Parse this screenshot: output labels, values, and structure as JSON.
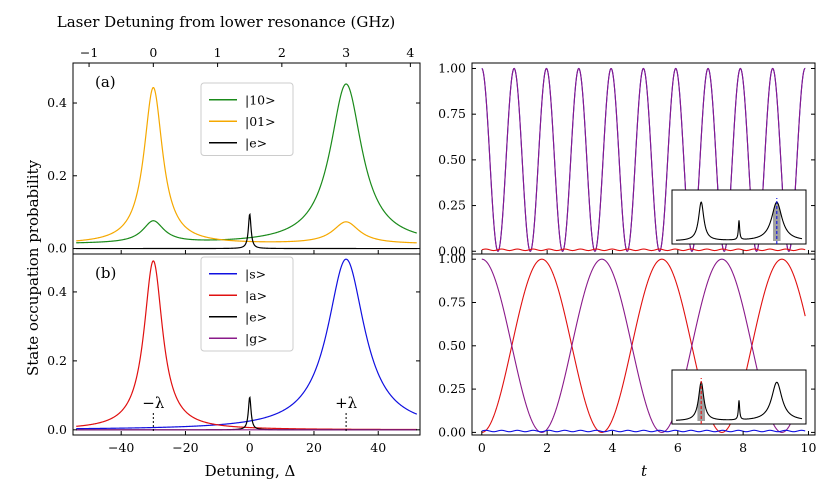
{
  "figure": {
    "top_axis_label": "Laser Detuning from lower resonance (GHz)",
    "y_axis_label": "State occupation probability",
    "x_axis_label_left": "Detuning, Δ",
    "x_axis_label_right": "t"
  },
  "colors": {
    "green": "#1a8a1a",
    "orange": "#f5a800",
    "black": "#000000",
    "blue": "#1010e0",
    "red": "#e01010",
    "purple": "#8a1a8a",
    "band": "#a0a0a0"
  },
  "chart_data": [
    {
      "id": "panel-a",
      "type": "line",
      "panel_label": "(a)",
      "xlim": [
        -55,
        53
      ],
      "ylim": [
        -0.015,
        0.51
      ],
      "top_axis": {
        "ticks": [
          -1,
          0,
          1,
          2,
          3,
          4
        ],
        "tick_labels": [
          "−1",
          "0",
          "1",
          "2",
          "3",
          "4"
        ],
        "detuning_at_0GHz": -30,
        "detuning_per_GHz": 20
      },
      "yticks": [
        0.0,
        0.2,
        0.4
      ],
      "ytick_labels": [
        "0.0",
        "0.2",
        "0.4"
      ],
      "legend": {
        "position": "upper-center",
        "entries": [
          "|10>",
          "|01>",
          "|e>"
        ]
      },
      "series": [
        {
          "name": "|10>",
          "color_key": "green",
          "peaks": [
            {
              "x0": 30,
              "amp": 0.44,
              "width": 6
            },
            {
              "x0": -30,
              "amp": 0.06,
              "width": 4
            }
          ],
          "baseline": 0.012
        },
        {
          "name": "|01>",
          "color_key": "orange",
          "peaks": [
            {
              "x0": -30,
              "amp": 0.43,
              "width": 3.5
            },
            {
              "x0": 30,
              "amp": 0.06,
              "width": 5
            }
          ],
          "baseline": 0.012
        },
        {
          "name": "|e>",
          "color_key": "black",
          "peaks": [
            {
              "x0": 0,
              "amp": 0.095,
              "width": 0.5
            }
          ],
          "baseline": 0.0
        }
      ]
    },
    {
      "id": "panel-b",
      "type": "line",
      "panel_label": "(b)",
      "xlim": [
        -55,
        53
      ],
      "ylim": [
        -0.015,
        0.51
      ],
      "xticks": [
        -40,
        -20,
        0,
        20,
        40
      ],
      "xtick_labels": [
        "−40",
        "−20",
        "0",
        "20",
        "40"
      ],
      "yticks": [
        0.0,
        0.2,
        0.4
      ],
      "ytick_labels": [
        "0.0",
        "0.2",
        "0.4"
      ],
      "legend": {
        "position": "upper-center",
        "entries": [
          "|s>",
          "|a>",
          "|e>",
          "|g>"
        ]
      },
      "annotations": [
        {
          "text": "−λ",
          "x": -30
        },
        {
          "text": "+λ",
          "x": 30
        }
      ],
      "series": [
        {
          "name": "|s>",
          "color_key": "blue",
          "peaks": [
            {
              "x0": 30,
              "amp": 0.495,
              "width": 7
            }
          ],
          "baseline": 0.0
        },
        {
          "name": "|a>",
          "color_key": "red",
          "peaks": [
            {
              "x0": -30,
              "amp": 0.49,
              "width": 3.5
            }
          ],
          "baseline": 0.0
        },
        {
          "name": "|e>",
          "color_key": "black",
          "peaks": [
            {
              "x0": 0,
              "amp": 0.095,
              "width": 0.5
            }
          ],
          "baseline": 0.0
        },
        {
          "name": "|g>",
          "color_key": "purple",
          "peaks": [],
          "baseline": 0.0
        }
      ]
    },
    {
      "id": "panel-c",
      "type": "line",
      "xlim": [
        -0.3,
        10.2
      ],
      "ylim": [
        -0.015,
        1.03
      ],
      "yticks": [
        0.0,
        0.25,
        0.5,
        0.75,
        1.0
      ],
      "ytick_labels": [
        "0.00",
        "0.25",
        "0.50",
        "0.75",
        "1.00"
      ],
      "series": [
        {
          "name": "blue",
          "color_key": "blue",
          "kind": "cos2",
          "omega": 6.35,
          "phase": 0.0
        },
        {
          "name": "purple",
          "color_key": "purple",
          "kind": "cos2",
          "omega": 6.35,
          "phase": 0.0,
          "tmin": 0.0
        },
        {
          "name": "red",
          "color_key": "red",
          "kind": "flat",
          "value": 0.008
        }
      ],
      "inset": {
        "highlight": "right-peak",
        "line_color_key": "blue"
      }
    },
    {
      "id": "panel-d",
      "type": "line",
      "xlim": [
        -0.3,
        10.2
      ],
      "xticks": [
        0,
        2,
        4,
        6,
        8,
        10
      ],
      "xtick_labels": [
        "0",
        "2",
        "4",
        "6",
        "8",
        "10"
      ],
      "ylim": [
        -0.015,
        1.03
      ],
      "yticks": [
        0.0,
        0.25,
        0.5,
        0.75,
        1.0
      ],
      "ytick_labels": [
        "0.00",
        "0.25",
        "0.50",
        "0.75",
        "1.00"
      ],
      "series": [
        {
          "name": "red",
          "color_key": "red",
          "kind": "sin2",
          "omega": 1.71,
          "phase": 0.0
        },
        {
          "name": "purple",
          "color_key": "purple",
          "kind": "cos2",
          "omega": 1.71,
          "phase": 0.0
        },
        {
          "name": "blue",
          "color_key": "blue",
          "kind": "flat",
          "value": 0.008
        }
      ],
      "inset": {
        "highlight": "left-peak",
        "line_color_key": "red"
      }
    }
  ]
}
